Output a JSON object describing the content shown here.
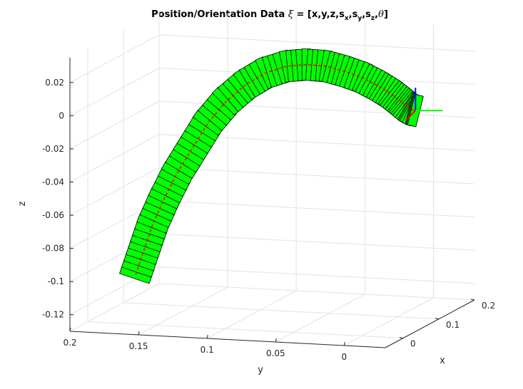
{
  "chart_data": {
    "type": "3d-line",
    "title_main": "Position/Orientation Data ",
    "title_xi": "ξ",
    "title_eq": " = [x,y,z,s",
    "title_sub_x": "x",
    "title_sep1": ",s",
    "title_sub_y": "y",
    "title_sep2": ",s",
    "title_sub_z": "z",
    "title_sep3": ",",
    "title_theta": "θ",
    "title_end": "]",
    "xlabel": "x",
    "ylabel": "y",
    "zlabel": "z",
    "xlim": [
      -0.05,
      0.2
    ],
    "ylim": [
      -0.03,
      0.2
    ],
    "zlim": [
      -0.13,
      0.035
    ],
    "xticks": [
      0,
      0.1,
      0.2
    ],
    "xtick_labels": [
      "0",
      "0.1",
      "0.2"
    ],
    "yticks": [
      0,
      0.05,
      0.1,
      0.15,
      0.2
    ],
    "ytick_labels": [
      "0",
      "0.05",
      "0.1",
      "0.15",
      "0.2"
    ],
    "zticks": [
      0.02,
      0,
      -0.02,
      -0.04,
      -0.06,
      -0.08,
      -0.1,
      -0.12
    ],
    "ztick_labels": [
      "0.02",
      "0",
      "-0.02",
      "-0.04",
      "-0.06",
      "-0.08",
      "-0.1",
      "-0.12"
    ],
    "grid": true,
    "series": [
      {
        "line_color": "#ff0000",
        "frame_fill": "#00ff00",
        "frame_edge": "#000000",
        "x": [
          0.0,
          0.005,
          0.01,
          0.015,
          0.02,
          0.025,
          0.03,
          0.035,
          0.04,
          0.045,
          0.05,
          0.055,
          0.06,
          0.065,
          0.07,
          0.075,
          0.08,
          0.085,
          0.09,
          0.095,
          0.1
        ],
        "y": [
          0.165,
          0.16,
          0.155,
          0.148,
          0.14,
          0.13,
          0.12,
          0.108,
          0.095,
          0.082,
          0.068,
          0.055,
          0.042,
          0.03,
          0.018,
          0.008,
          0.0,
          -0.006,
          -0.01,
          -0.012,
          -0.013
        ],
        "z": [
          -0.1,
          -0.085,
          -0.07,
          -0.055,
          -0.04,
          -0.025,
          -0.01,
          0.003,
          0.013,
          0.02,
          0.024,
          0.025,
          0.024,
          0.021,
          0.017,
          0.012,
          0.007,
          0.002,
          -0.002,
          -0.004,
          -0.005
        ]
      }
    ],
    "end_frame_axes": [
      {
        "color": "#0000ff"
      },
      {
        "color": "#00ff00"
      },
      {
        "color": "#ff0000"
      }
    ]
  }
}
